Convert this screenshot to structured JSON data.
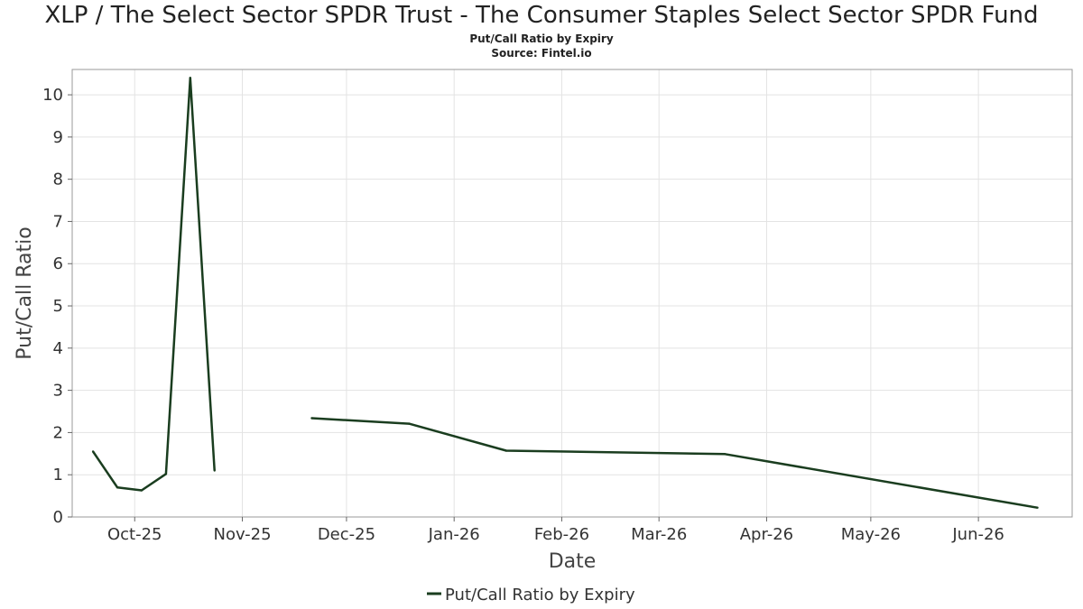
{
  "header": {
    "title": "XLP / The Select Sector SPDR Trust - The Consumer Staples Select Sector SPDR Fund",
    "subtitle": "Put/Call Ratio by Expiry",
    "source": "Source: Fintel.io"
  },
  "chart_data": {
    "type": "line",
    "title": "XLP / The Select Sector SPDR Trust - The Consumer Staples Select Sector SPDR Fund",
    "subtitle": "Put/Call Ratio by Expiry",
    "xlabel": "Date",
    "ylabel": "Put/Call Ratio",
    "xlim": [
      "2025-09-13",
      "2026-06-28"
    ],
    "ylim": [
      0,
      10.6
    ],
    "x_ticks": [
      {
        "date": "2025-10-01",
        "label": "Oct-25"
      },
      {
        "date": "2025-11-01",
        "label": "Nov-25"
      },
      {
        "date": "2025-12-01",
        "label": "Dec-25"
      },
      {
        "date": "2026-01-01",
        "label": "Jan-26"
      },
      {
        "date": "2026-02-01",
        "label": "Feb-26"
      },
      {
        "date": "2026-03-01",
        "label": "Mar-26"
      },
      {
        "date": "2026-04-01",
        "label": "Apr-26"
      },
      {
        "date": "2026-05-01",
        "label": "May-26"
      },
      {
        "date": "2026-06-01",
        "label": "Jun-26"
      }
    ],
    "y_ticks": [
      0,
      1,
      2,
      3,
      4,
      5,
      6,
      7,
      8,
      9,
      10
    ],
    "grid": true,
    "legend_position": "bottom-center",
    "series": [
      {
        "name": "Put/Call Ratio by Expiry",
        "color": "#1a3d1f",
        "segments": [
          [
            {
              "x": "2025-09-19",
              "y": 1.55
            },
            {
              "x": "2025-09-26",
              "y": 0.7
            },
            {
              "x": "2025-10-03",
              "y": 0.63
            },
            {
              "x": "2025-10-10",
              "y": 1.02
            },
            {
              "x": "2025-10-17",
              "y": 10.4
            },
            {
              "x": "2025-10-24",
              "y": 1.1
            }
          ],
          [
            {
              "x": "2025-11-21",
              "y": 2.34
            },
            {
              "x": "2025-12-19",
              "y": 2.21
            },
            {
              "x": "2026-01-16",
              "y": 1.57
            },
            {
              "x": "2026-03-20",
              "y": 1.49
            },
            {
              "x": "2026-06-18",
              "y": 0.22
            }
          ]
        ]
      }
    ]
  },
  "legend": {
    "label": "Put/Call Ratio by Expiry"
  }
}
